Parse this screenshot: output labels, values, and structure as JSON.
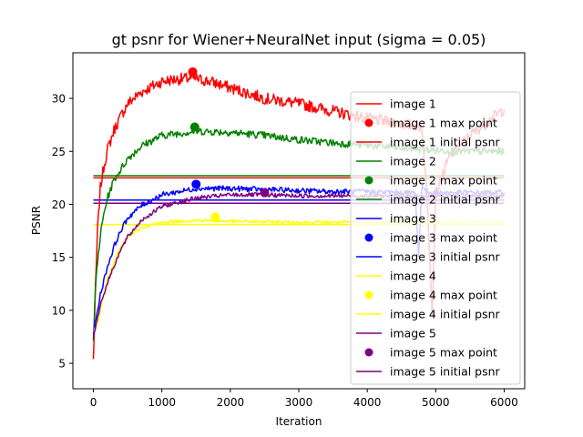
{
  "chart_data": {
    "type": "line",
    "title": "gt psnr for Wiener+NeuralNet input (sigma = 0.05)",
    "xlabel": "Iteration",
    "ylabel": "PSNR",
    "xlim": [
      -300,
      6300
    ],
    "ylim": [
      2.6,
      34.3
    ],
    "xticks": [
      0,
      1000,
      2000,
      3000,
      4000,
      5000,
      6000
    ],
    "yticks": [
      5,
      10,
      15,
      20,
      25,
      30
    ],
    "grid": false,
    "legend_position": "right",
    "series": [
      {
        "name": "image 1",
        "color": "#ff0000",
        "x": [
          0,
          30,
          60,
          100,
          150,
          200,
          300,
          400,
          500,
          700,
          1000,
          1200,
          1450,
          1700,
          2000,
          2500,
          3000,
          3500,
          4000,
          4500,
          4800,
          4880,
          4950,
          5000,
          5200,
          5500,
          5800,
          6000
        ],
        "y": [
          5.3,
          12,
          17.5,
          21.5,
          23.5,
          25,
          27,
          28.3,
          29.5,
          30.6,
          31.6,
          31.8,
          31.9,
          31.6,
          31,
          30,
          29.5,
          28.8,
          28.1,
          27.6,
          27.3,
          20,
          10,
          21,
          24.5,
          26.5,
          28,
          29
        ],
        "max_point": {
          "x": 1450,
          "y": 32.5,
          "label": "image 1 max point"
        },
        "initial_psnr": {
          "value": 22.5,
          "label": "image 1 initial psnr"
        }
      },
      {
        "name": "image 2",
        "color": "#008000",
        "x": [
          0,
          30,
          60,
          100,
          150,
          200,
          300,
          400,
          500,
          700,
          1000,
          1500,
          2000,
          2500,
          3000,
          3500,
          4000,
          4500,
          4800,
          5000,
          5500,
          6000
        ],
        "y": [
          7.2,
          12,
          14.5,
          17,
          19,
          20.5,
          22.3,
          23.3,
          24.3,
          25.5,
          26.5,
          26.9,
          26.8,
          26.5,
          26.1,
          25.8,
          25.6,
          25.3,
          25.2,
          25.1,
          25,
          25
        ],
        "max_point": {
          "x": 1480,
          "y": 27.3,
          "label": "image 2 max point"
        },
        "initial_psnr": {
          "value": 22.7,
          "label": "image 2 initial psnr"
        }
      },
      {
        "name": "image 3",
        "color": "#0000ff",
        "x": [
          0,
          50,
          100,
          200,
          300,
          400,
          500,
          700,
          1000,
          1500,
          2000,
          2500,
          3000,
          3500,
          4000,
          4500,
          4700,
          4750,
          4800,
          4850,
          5000,
          5500,
          6000
        ],
        "y": [
          8,
          9.5,
          11.5,
          14,
          16,
          17.5,
          18.7,
          19.9,
          20.9,
          21.5,
          21.5,
          21.4,
          21.3,
          21.2,
          21.2,
          21.1,
          21.1,
          15,
          22,
          21.2,
          21.1,
          21.1,
          21.1
        ],
        "max_point": {
          "x": 1500,
          "y": 21.9,
          "label": "image 3 max point"
        },
        "initial_psnr": {
          "value": 20.4,
          "label": "image 3 initial psnr"
        }
      },
      {
        "name": "image 4",
        "color": "#ffff00",
        "x": [
          0,
          50,
          100,
          150,
          200,
          300,
          400,
          500,
          700,
          1000,
          1500,
          2000,
          3000,
          4000,
          5000,
          6000
        ],
        "y": [
          8,
          8.5,
          10,
          11.5,
          12.8,
          14.6,
          15.9,
          16.9,
          17.8,
          18.3,
          18.5,
          18.4,
          18.3,
          18.3,
          18.3,
          18.3
        ],
        "max_point": {
          "x": 1780,
          "y": 18.8,
          "label": "image 4 max point"
        },
        "initial_psnr": {
          "value": 18.1,
          "label": "image 4 initial psnr"
        }
      },
      {
        "name": "image 5",
        "color": "#800080",
        "x": [
          0,
          50,
          100,
          200,
          300,
          400,
          500,
          700,
          1000,
          1500,
          2000,
          2500,
          3000,
          3500,
          4000,
          4500,
          5000,
          6000
        ],
        "y": [
          7.5,
          9,
          10.5,
          12.5,
          14.2,
          15.7,
          16.9,
          18.5,
          19.8,
          20.6,
          20.9,
          20.9,
          20.8,
          20.8,
          20.8,
          20.8,
          20.8,
          20.8
        ],
        "max_point": {
          "x": 2500,
          "y": 21.1,
          "label": "image 5 max point"
        },
        "initial_psnr": {
          "value": 20.1,
          "label": "image 5 initial psnr"
        }
      }
    ]
  }
}
